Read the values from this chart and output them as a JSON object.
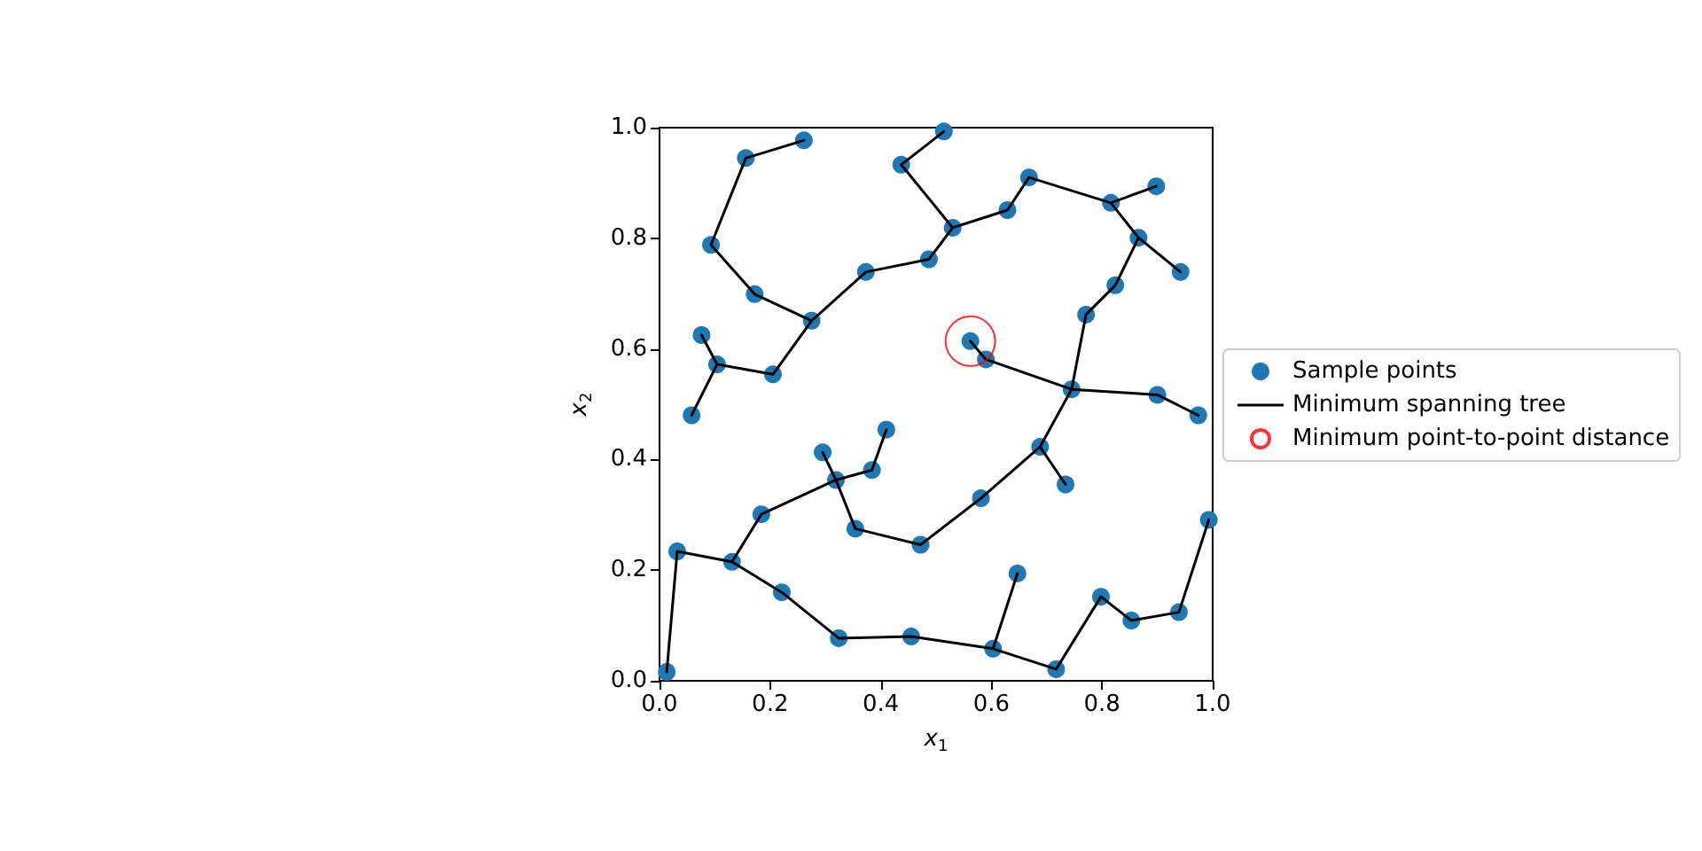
{
  "chart_data": {
    "type": "scatter",
    "xlabel": "x$_{1}$",
    "ylabel": "x$_{2}$",
    "xlim": [
      0,
      1
    ],
    "ylim": [
      0,
      1
    ],
    "xticks": [
      {
        "value": 0,
        "label": "0.0"
      },
      0.2,
      0.4,
      0.6,
      0.8,
      {
        "value": 1,
        "label": "1.0"
      }
    ],
    "yticks": [
      {
        "value": 0,
        "label": "0.0"
      },
      0.2,
      0.4,
      0.6,
      0.8,
      {
        "value": 1,
        "label": "1.0"
      }
    ],
    "grid": false,
    "legend": "right",
    "series": [
      {
        "name": "Sample points",
        "color": "#1f77b4",
        "marker": "circle",
        "x": [
          0.013,
          0.032,
          0.131,
          0.221,
          0.324,
          0.455,
          0.603,
          0.647,
          0.717,
          0.798,
          0.853,
          0.939,
          0.993,
          0.184,
          0.319,
          0.295,
          0.384,
          0.41,
          0.354,
          0.472,
          0.581,
          0.688,
          0.734,
          0.745,
          0.9,
          0.974,
          0.59,
          0.562,
          0.771,
          0.824,
          0.866,
          0.942,
          0.816,
          0.898,
          0.668,
          0.629,
          0.53,
          0.437,
          0.514,
          0.487,
          0.373,
          0.275,
          0.172,
          0.093,
          0.156,
          0.261,
          0.205,
          0.104,
          0.076,
          0.058
        ],
        "values": [
          0.016,
          0.234,
          0.215,
          0.16,
          0.077,
          0.08,
          0.058,
          0.194,
          0.021,
          0.152,
          0.109,
          0.124,
          0.291,
          0.301,
          0.363,
          0.413,
          0.381,
          0.454,
          0.275,
          0.246,
          0.33,
          0.423,
          0.355,
          0.527,
          0.517,
          0.48,
          0.581,
          0.614,
          0.662,
          0.715,
          0.801,
          0.739,
          0.864,
          0.894,
          0.91,
          0.851,
          0.819,
          0.933,
          0.993,
          0.762,
          0.739,
          0.651,
          0.699,
          0.788,
          0.945,
          0.977,
          0.554,
          0.572,
          0.625,
          0.48
        ]
      },
      {
        "name": "Minimum spanning tree",
        "type": "line",
        "color": "#000000",
        "marker": "none",
        "line_style": "solid",
        "x": [
          0.013,
          0.032,
          0.131,
          0.221,
          0.324,
          0.455,
          0.603,
          0.717,
          0.798,
          0.853,
          0.939,
          0.993,
          null,
          0.603,
          0.647,
          null,
          0.131,
          0.184,
          0.319,
          0.384,
          0.41,
          null,
          0.319,
          0.295,
          null,
          0.319,
          0.354,
          0.472,
          0.581,
          0.688,
          0.745,
          0.771,
          0.824,
          0.866,
          0.816,
          0.668,
          0.629,
          0.53,
          0.487,
          0.373,
          0.275,
          0.172,
          0.093,
          0.156,
          0.261,
          null,
          0.688,
          0.734,
          null,
          0.745,
          0.9,
          0.974,
          null,
          0.745,
          0.59,
          0.562,
          null,
          0.866,
          0.942,
          null,
          0.816,
          0.898,
          null,
          0.53,
          0.437,
          0.514,
          null,
          0.275,
          0.205,
          0.104,
          0.076,
          null,
          0.104,
          0.058
        ],
        "values": [
          0.016,
          0.234,
          0.215,
          0.16,
          0.077,
          0.08,
          0.058,
          0.021,
          0.152,
          0.109,
          0.124,
          0.291,
          null,
          0.058,
          0.194,
          null,
          0.215,
          0.301,
          0.363,
          0.381,
          0.454,
          null,
          0.363,
          0.413,
          null,
          0.363,
          0.275,
          0.246,
          0.33,
          0.423,
          0.527,
          0.662,
          0.715,
          0.801,
          0.864,
          0.91,
          0.851,
          0.819,
          0.762,
          0.739,
          0.651,
          0.699,
          0.788,
          0.945,
          0.977,
          null,
          0.423,
          0.355,
          null,
          0.527,
          0.517,
          0.48,
          null,
          0.527,
          0.581,
          0.614,
          null,
          0.801,
          0.739,
          null,
          0.864,
          0.894,
          null,
          0.819,
          0.933,
          0.993,
          null,
          0.651,
          0.554,
          0.572,
          0.625,
          null,
          0.572,
          0.48
        ]
      },
      {
        "name": "Minimum point-to-point distance",
        "color": "#ff0000",
        "marker": "circle",
        "x": [
          0.562
        ],
        "values": [
          0.614
        ]
      }
    ]
  }
}
